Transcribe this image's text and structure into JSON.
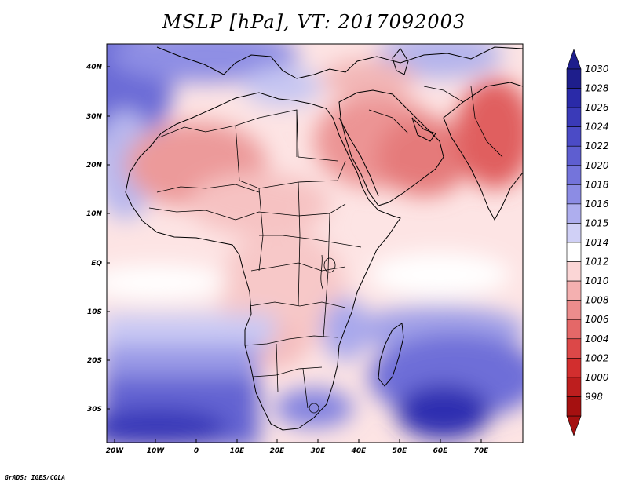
{
  "title": "MSLP [hPa], VT: 2017092003",
  "credit": "GrADS: IGES/COLA",
  "lon_ticks": [
    "20W",
    "10W",
    "0",
    "10E",
    "20E",
    "30E",
    "40E",
    "50E",
    "60E",
    "70E"
  ],
  "lat_ticks": [
    "40N",
    "30N",
    "20N",
    "10N",
    "EQ",
    "10S",
    "20S",
    "30S"
  ],
  "colorbar": {
    "levels": [
      "1030",
      "1028",
      "1026",
      "1024",
      "1022",
      "1020",
      "1018",
      "1016",
      "1015",
      "1014",
      "1012",
      "1010",
      "1008",
      "1006",
      "1004",
      "1002",
      "1000",
      "998"
    ],
    "colors": [
      "#1e1e8c",
      "#2a2aa8",
      "#3a3ab8",
      "#4b4bc6",
      "#5e5ed0",
      "#7474db",
      "#8c8ce4",
      "#aeaeee",
      "#d0d0f6",
      "#ffffff",
      "#fbd6d6",
      "#f4b0b0",
      "#ec8c8c",
      "#e46868",
      "#dc4848",
      "#d22e2e",
      "#bd1e1e",
      "#a51010"
    ]
  },
  "map": {
    "domain": "Africa, Middle East and South Asia",
    "lon_range": [
      "20W",
      "80E"
    ],
    "lat_range": [
      "37S",
      "45N"
    ],
    "highs": "blue over Atlantic, Mediterranean and southern Indian Ocean",
    "lows": "red over Sahara, Arabian Peninsula and Indian subcontinent"
  }
}
